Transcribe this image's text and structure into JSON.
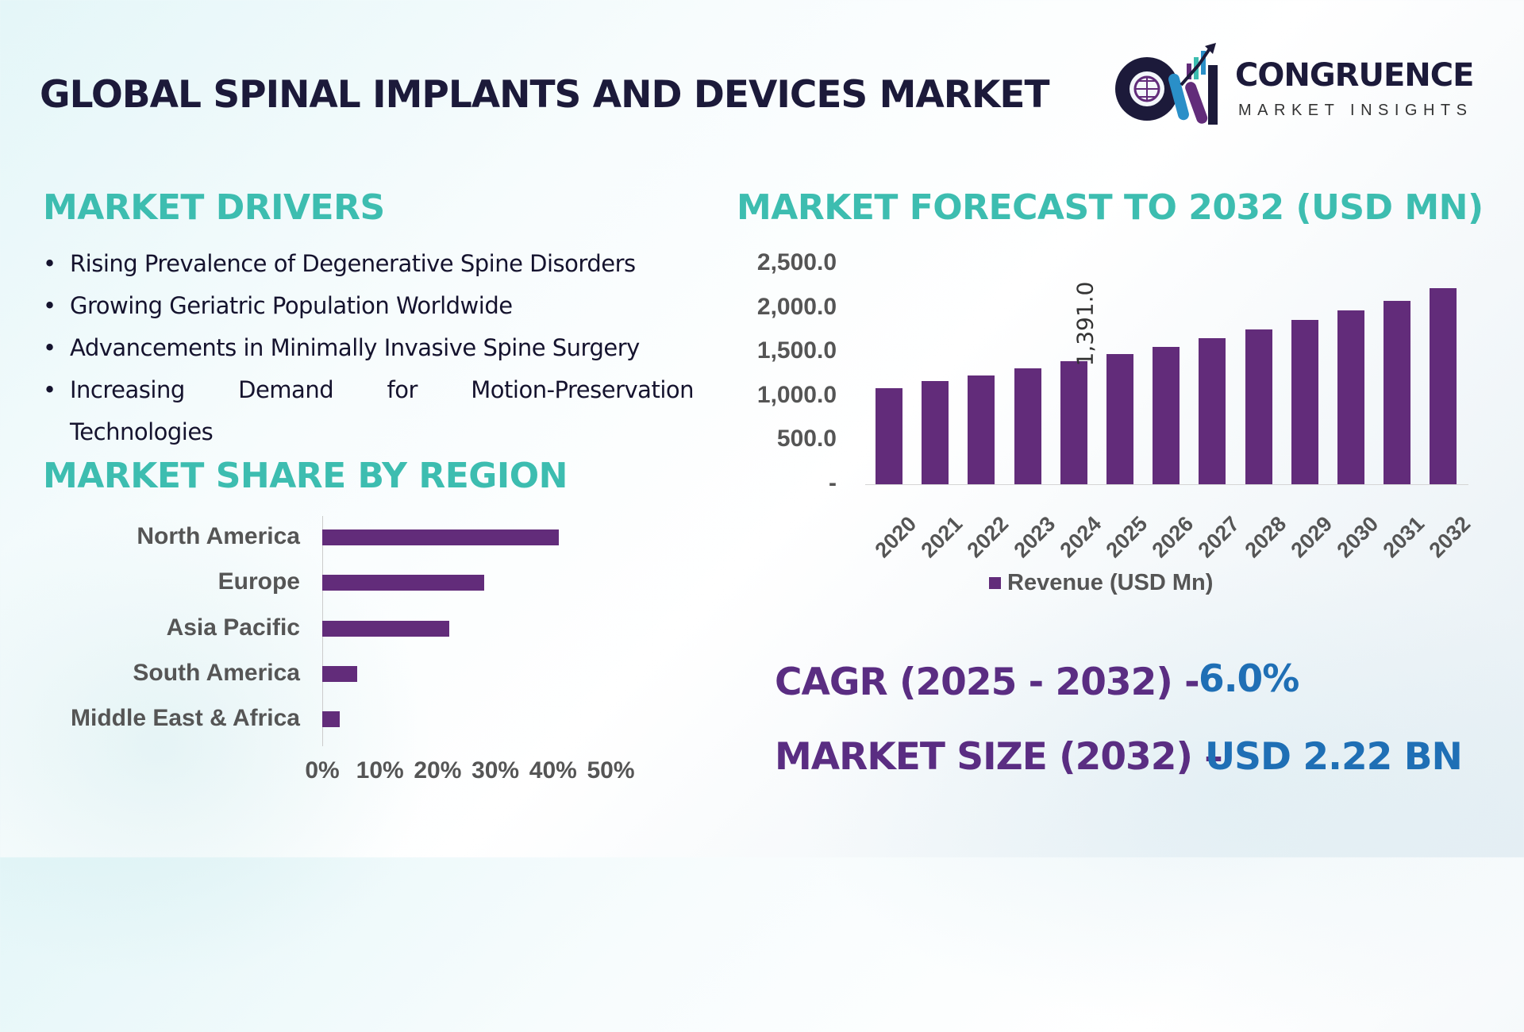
{
  "header": {
    "title": "GLOBAL SPINAL IMPLANTS AND DEVICES MARKET",
    "logo_name": "CONGRUENCE",
    "logo_tagline": "MARKET INSIGHTS"
  },
  "drivers": {
    "heading": "MARKET DRIVERS",
    "items": [
      "Rising Prevalence of Degenerative Spine Disorders",
      "Growing Geriatric Population Worldwide",
      "Advancements in Minimally Invasive Spine Surgery",
      "Increasing Demand for Motion-Preservation",
      "Technologies"
    ]
  },
  "colors": {
    "bar": "#622c7a",
    "heading": "#3dbdb0",
    "kpi_label": "#5a2d82",
    "kpi_value": "#1f6fb5"
  },
  "chart_data": [
    {
      "type": "bar",
      "orientation": "horizontal",
      "title": "MARKET SHARE BY REGION",
      "categories": [
        "North America",
        "Europe",
        "Asia Pacific",
        "South America",
        "Middle East & Africa"
      ],
      "values": [
        41,
        28,
        22,
        6,
        3
      ],
      "unit": "%",
      "xlim": [
        0,
        50
      ],
      "tick_labels": [
        "0%",
        "10%",
        "20%",
        "30%",
        "40%",
        "50%"
      ],
      "grid": false
    },
    {
      "type": "bar",
      "orientation": "vertical",
      "title": "MARKET FORECAST TO 2032 (USD MN)",
      "categories": [
        "2020",
        "2021",
        "2022",
        "2023",
        "2024",
        "2025",
        "2026",
        "2027",
        "2028",
        "2029",
        "2030",
        "2031",
        "2032"
      ],
      "series": [
        {
          "name": "Revenue (USD Mn)",
          "values": [
            1090,
            1167,
            1233,
            1311,
            1391,
            1476,
            1553,
            1652,
            1751,
            1861,
            1971,
            2081,
            2220
          ]
        }
      ],
      "data_labels": {
        "4": "1,391.0"
      },
      "ylim": [
        0,
        2500
      ],
      "tick_labels": [
        "-",
        "500.0",
        "1,000.0",
        "1,500.0",
        "2,000.0",
        "2,500.0"
      ],
      "legend": "bottom",
      "grid": false
    }
  ],
  "kpis": {
    "cagr_label": "CAGR (2025 - 2032) -",
    "cagr_value": "6.0%",
    "size_label": "MARKET SIZE (2032) –",
    "size_value": "USD 2.22 BN"
  }
}
